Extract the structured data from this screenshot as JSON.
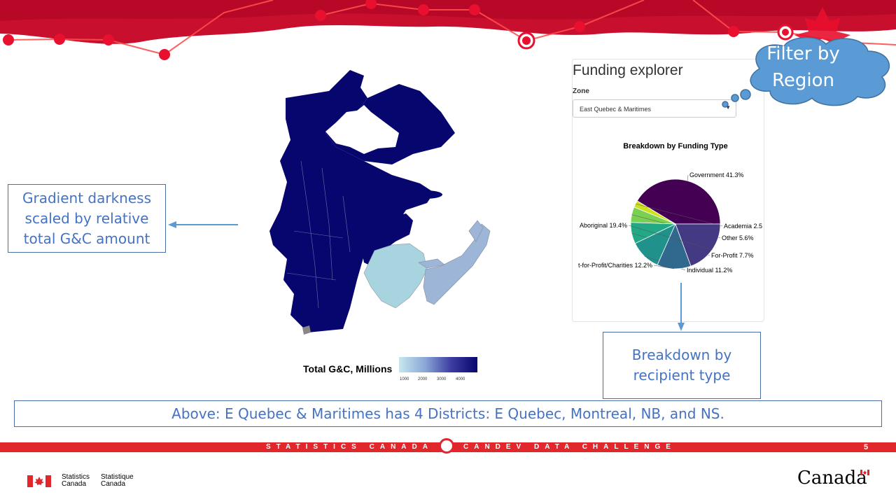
{
  "slide": {
    "footer_left": "STATISTICS CANADA",
    "footer_right": "CANDEV DATA CHALLENGE",
    "page_number": "5",
    "stats_en_line1": "Statistics",
    "stats_en_line2": "Canada",
    "stats_fr_line1": "Statistique",
    "stats_fr_line2": "Canada",
    "wordmark": "Canada"
  },
  "callouts": {
    "gradient": "Gradient darkness scaled by relative total G&C amount",
    "breakdown": "Breakdown by recipient type",
    "summary": "Above: E Quebec & Maritimes has 4 Districts: E Quebec, Montreal, NB, and NS.",
    "filter_line1": "Filter by",
    "filter_line2": "Region"
  },
  "map": {
    "legend_title": "Total G&C, Millions",
    "legend_ticks": [
      "1000",
      "2000",
      "3000",
      "4000"
    ]
  },
  "explorer": {
    "title": "Funding explorer",
    "zone_label": "Zone",
    "zone_value": "East Quebec & Maritimes",
    "caret": "▼"
  },
  "chart_data": {
    "type": "pie",
    "title": "Breakdown by Funding Type",
    "slices": [
      {
        "label": "Government",
        "value": 41.3,
        "text": "Government 41.3%",
        "color": "#440154"
      },
      {
        "label": "Academia",
        "value": 2.5,
        "text": "Academia 2.5",
        "color": "#cde11d"
      },
      {
        "label": "Other",
        "value": 5.6,
        "text": "Other 5.6%",
        "color": "#7ad151"
      },
      {
        "label": "For-Profit",
        "value": 7.7,
        "text": "For-Profit 7.7%",
        "color": "#22a884"
      },
      {
        "label": "Individual",
        "value": 11.2,
        "text": "Individual 11.2%",
        "color": "#21918c"
      },
      {
        "label": "Not-for-Profit/Charities",
        "value": 12.2,
        "text": "t-for-Profit/Charities 12.2%",
        "color": "#31688e"
      },
      {
        "label": "Aboriginal",
        "value": 19.4,
        "text": "Aboriginal 19.4%",
        "color": "#443983"
      }
    ]
  },
  "colors": {
    "accent_red": "#e1262c",
    "callout_text": "#4472c4",
    "map_dark": "#06066e",
    "map_light": "#a8d4e0",
    "cloud_fill": "#5b9bd5"
  }
}
